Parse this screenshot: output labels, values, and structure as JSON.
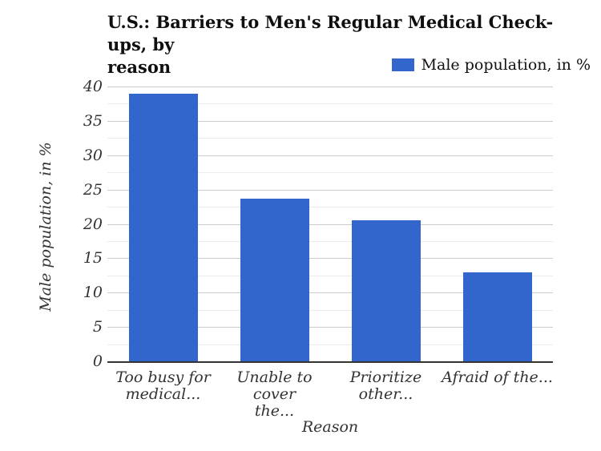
{
  "page": {
    "title_lines": [
      "U.S.: Barriers to Men's Regular Medical Check-ups, by",
      "reason"
    ]
  },
  "legend": {
    "label": "Male population, in %",
    "swatch_color": "#3366cc"
  },
  "axes": {
    "x_title": "Reason",
    "y_title": "Male population, in %"
  },
  "colors": {
    "bar": "#3366cc",
    "grid_major": "#cccccc",
    "grid_minor": "#ebebeb",
    "baseline": "#333333",
    "title_text": "#0f0f0f",
    "axis_text": "#333333"
  },
  "chart_data": {
    "type": "bar",
    "title": "U.S.: Barriers to Men's Regular Medical Check-ups, by reason",
    "categories": [
      "Too busy for medical...",
      "Unable to cover the...",
      "Prioritize other...",
      "Afraid of the..."
    ],
    "category_label_lines": [
      [
        "Too busy for",
        "medical..."
      ],
      [
        "Unable to cover",
        "the..."
      ],
      [
        "Prioritize other..."
      ],
      [
        "Afraid of the..."
      ]
    ],
    "series": [
      {
        "name": "Male population, in %",
        "color": "#3366cc",
        "values": [
          38.9,
          23.7,
          20.5,
          12.9
        ]
      }
    ],
    "xlabel": "Reason",
    "ylabel": "Male population, in %",
    "ylim": [
      0,
      40
    ],
    "yticks": [
      0,
      5,
      10,
      15,
      20,
      25,
      30,
      35,
      40
    ],
    "minor_gridline_step": 2.5,
    "grid": "on",
    "legend_position": "top-right"
  }
}
